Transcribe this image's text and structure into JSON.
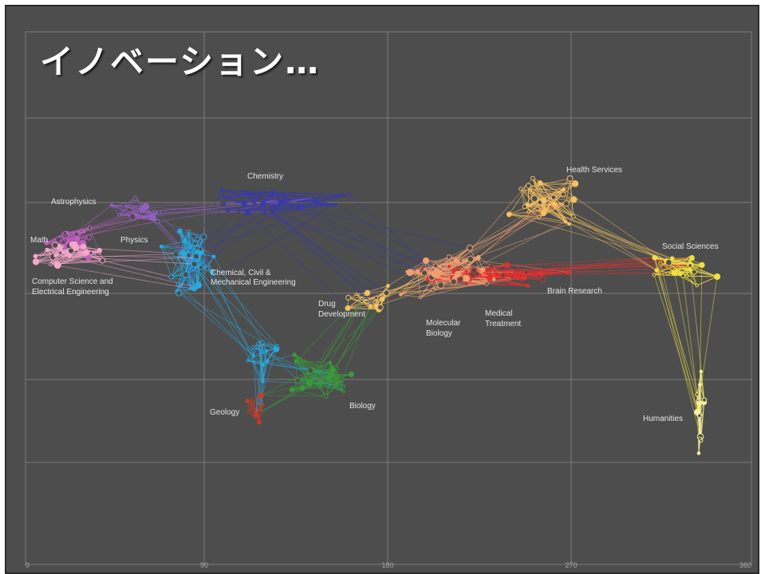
{
  "slide": {
    "title": "イノベーション…",
    "background": "#4d4d4d"
  },
  "map": {
    "x_ticks": [
      "0",
      "90",
      "180",
      "270",
      "360"
    ],
    "labels": {
      "chemistry": "Chemistry",
      "health_services": "Health Services",
      "astrophysics": "Astrophysics",
      "math": "Math",
      "physics": "Physics",
      "social_sciences": "Social Sciences",
      "chem_civil_mech": [
        "Chemical, Civil &",
        "Mechanical Engineering"
      ],
      "cs_ee": [
        "Computer Science and",
        "Electrical Engineering"
      ],
      "drug_development": [
        "Drug",
        "Development"
      ],
      "brain_research": "Brain Research",
      "molecular_biology": [
        "Molecular",
        "Biology"
      ],
      "medical_treatment": [
        "Medical",
        "Treatment"
      ],
      "biology": "Biology",
      "geology": "Geology",
      "humanities": "Humanities"
    },
    "colors": {
      "math": "#c060c0",
      "cs_ee": "#f4a7c9",
      "astrophysics": "#9060c0",
      "chemistry": "#3a3aa8",
      "engineering": "#29a9e0",
      "biology": "#3a9a3a",
      "geology": "#c83a2a",
      "medicine": "#e03030",
      "molecular": "#f0a070",
      "health": "#f5c060",
      "social": "#f0e040",
      "humanities": "#f8f09a"
    }
  }
}
